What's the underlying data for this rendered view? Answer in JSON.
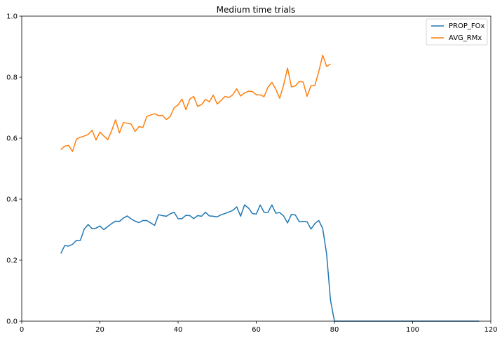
{
  "chart_data": {
    "type": "line",
    "title": "Medium time trials",
    "xlabel": "",
    "ylabel": "",
    "xlim": [
      0,
      120
    ],
    "ylim": [
      0,
      1.0
    ],
    "xticks": [
      0,
      20,
      40,
      60,
      80,
      100,
      120
    ],
    "yticks": [
      0.0,
      0.2,
      0.4,
      0.6,
      0.8,
      1.0
    ],
    "grid": false,
    "legend_position": "top-right",
    "series": [
      {
        "name": "PROP_FOx",
        "color": "#1f77b4",
        "x": [
          10,
          11,
          12,
          13,
          14,
          15,
          16,
          17,
          18,
          19,
          20,
          21,
          22,
          23,
          24,
          25,
          26,
          27,
          28,
          29,
          30,
          31,
          32,
          33,
          34,
          35,
          36,
          37,
          38,
          39,
          40,
          41,
          42,
          43,
          44,
          45,
          46,
          47,
          48,
          49,
          50,
          51,
          52,
          53,
          54,
          55,
          56,
          57,
          58,
          59,
          60,
          61,
          62,
          63,
          64,
          65,
          66,
          67,
          68,
          69,
          70,
          71,
          72,
          73,
          74,
          75,
          76,
          77,
          78,
          79,
          80,
          81,
          82,
          83,
          84,
          85,
          86,
          87,
          88,
          89,
          90,
          91,
          92,
          93,
          94,
          95,
          96,
          97,
          98,
          99,
          100,
          101,
          102,
          103,
          104,
          105,
          106,
          107,
          108,
          109,
          110,
          111,
          112,
          113,
          114,
          115,
          116,
          117
        ],
        "y": [
          0.222,
          0.248,
          0.246,
          0.252,
          0.265,
          0.265,
          0.302,
          0.317,
          0.303,
          0.305,
          0.312,
          0.3,
          0.31,
          0.32,
          0.328,
          0.327,
          0.338,
          0.345,
          0.335,
          0.328,
          0.323,
          0.33,
          0.33,
          0.322,
          0.314,
          0.349,
          0.346,
          0.344,
          0.352,
          0.357,
          0.336,
          0.336,
          0.347,
          0.346,
          0.336,
          0.346,
          0.344,
          0.357,
          0.345,
          0.344,
          0.342,
          0.349,
          0.353,
          0.358,
          0.363,
          0.375,
          0.344,
          0.381,
          0.371,
          0.353,
          0.351,
          0.381,
          0.357,
          0.357,
          0.381,
          0.354,
          0.356,
          0.345,
          0.322,
          0.35,
          0.348,
          0.326,
          0.327,
          0.326,
          0.302,
          0.32,
          0.33,
          0.304,
          0.22,
          0.068,
          0.0,
          0.0,
          0.0,
          0.0,
          0.0,
          0.0,
          0.0,
          0.0,
          0.0,
          0.0,
          0.0,
          0.0,
          0.0,
          0.0,
          0.0,
          0.0,
          0.0,
          0.0,
          0.0,
          0.0,
          0.0,
          0.0,
          0.0,
          0.0,
          0.0,
          0.0,
          0.0,
          0.0,
          0.0,
          0.0,
          0.0,
          0.0,
          0.0,
          0.0,
          0.0,
          0.0,
          0.0,
          0.0
        ]
      },
      {
        "name": "AVG_RMx",
        "color": "#ff7f0e",
        "x": [
          10,
          11,
          12,
          13,
          14,
          15,
          16,
          17,
          18,
          19,
          20,
          21,
          22,
          23,
          24,
          25,
          26,
          27,
          28,
          29,
          30,
          31,
          32,
          33,
          34,
          35,
          36,
          37,
          38,
          39,
          40,
          41,
          42,
          43,
          44,
          45,
          46,
          47,
          48,
          49,
          50,
          51,
          52,
          53,
          54,
          55,
          56,
          57,
          58,
          59,
          60,
          61,
          62,
          63,
          64,
          65,
          66,
          67,
          68,
          69,
          70,
          71,
          72,
          73,
          74,
          75,
          76,
          77,
          78,
          79
        ],
        "y": [
          0.562,
          0.574,
          0.576,
          0.556,
          0.597,
          0.603,
          0.607,
          0.612,
          0.626,
          0.594,
          0.62,
          0.607,
          0.595,
          0.624,
          0.66,
          0.617,
          0.651,
          0.649,
          0.646,
          0.622,
          0.638,
          0.635,
          0.671,
          0.676,
          0.68,
          0.674,
          0.675,
          0.661,
          0.671,
          0.7,
          0.709,
          0.728,
          0.693,
          0.728,
          0.737,
          0.704,
          0.71,
          0.727,
          0.719,
          0.741,
          0.712,
          0.723,
          0.737,
          0.733,
          0.742,
          0.762,
          0.738,
          0.748,
          0.754,
          0.753,
          0.742,
          0.742,
          0.736,
          0.767,
          0.783,
          0.76,
          0.731,
          0.774,
          0.83,
          0.768,
          0.771,
          0.786,
          0.784,
          0.737,
          0.772,
          0.773,
          0.819,
          0.872,
          0.835,
          0.843
        ]
      }
    ]
  }
}
